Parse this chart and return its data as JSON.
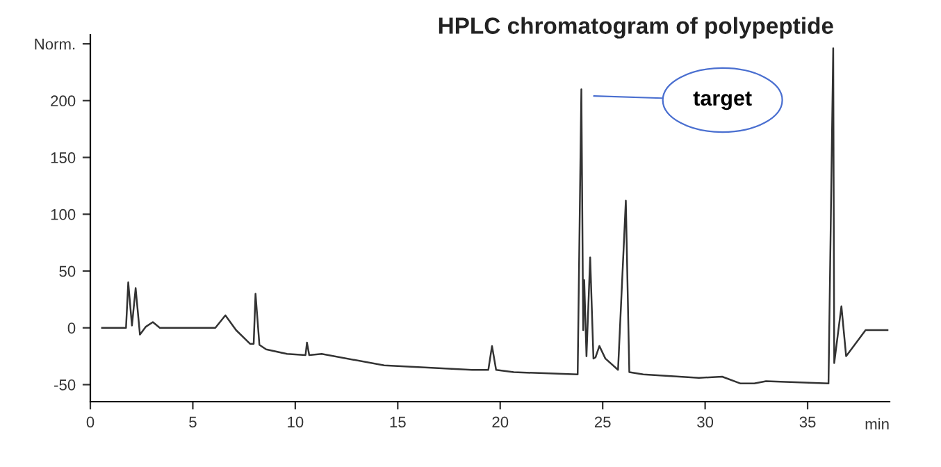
{
  "chart_data": {
    "type": "line",
    "title": "HPLC chromatogram of polypeptide",
    "xlabel": "min",
    "x": [
      0.57,
      1.74,
      1.85,
      2.03,
      2.21,
      2.42,
      2.71,
      3.05,
      3.39,
      6.1,
      6.59,
      7.11,
      7.79,
      7.97,
      8.06,
      8.25,
      8.58,
      9.6,
      10.5,
      10.57,
      10.68,
      11.29,
      14.34,
      18.63,
      19.42,
      19.6,
      19.8,
      20.66,
      23.78,
      23.96,
      24.05,
      24.1,
      24.21,
      24.39,
      24.55,
      24.65,
      24.84,
      25.13,
      25.75,
      26.13,
      26.3,
      26.98,
      29.7,
      30.83,
      31.73,
      32.4,
      32.97,
      36.02,
      36.25,
      36.3,
      36.65,
      36.88,
      37.83,
      38.9
    ],
    "series": [
      {
        "color": "#333333",
        "values": [
          0,
          0,
          40,
          2,
          35,
          -6,
          1,
          5,
          0,
          0,
          11,
          -2,
          -14,
          -14,
          30,
          -15,
          -19,
          -23,
          -24,
          -13,
          -24,
          -23,
          -33,
          -37,
          -37,
          -16,
          -37,
          -39,
          -41,
          210,
          -2,
          42,
          -25,
          62,
          -27,
          -26,
          -16,
          -27,
          -37,
          112,
          -39,
          -41,
          -44,
          -43,
          -49,
          -49,
          -47,
          -49,
          246,
          -31,
          19,
          -25,
          -2,
          -2
        ]
      }
    ],
    "annotations": [
      "target"
    ],
    "xlim": [
      0,
      39
    ],
    "ylim": [
      -65,
      258
    ],
    "xticks": [
      0,
      5,
      10,
      15,
      20,
      25,
      30,
      35
    ],
    "yticks": [
      -50,
      0,
      50,
      100,
      150,
      200,
      {
        "value": 250,
        "label": "Norm."
      }
    ],
    "grid": false
  }
}
